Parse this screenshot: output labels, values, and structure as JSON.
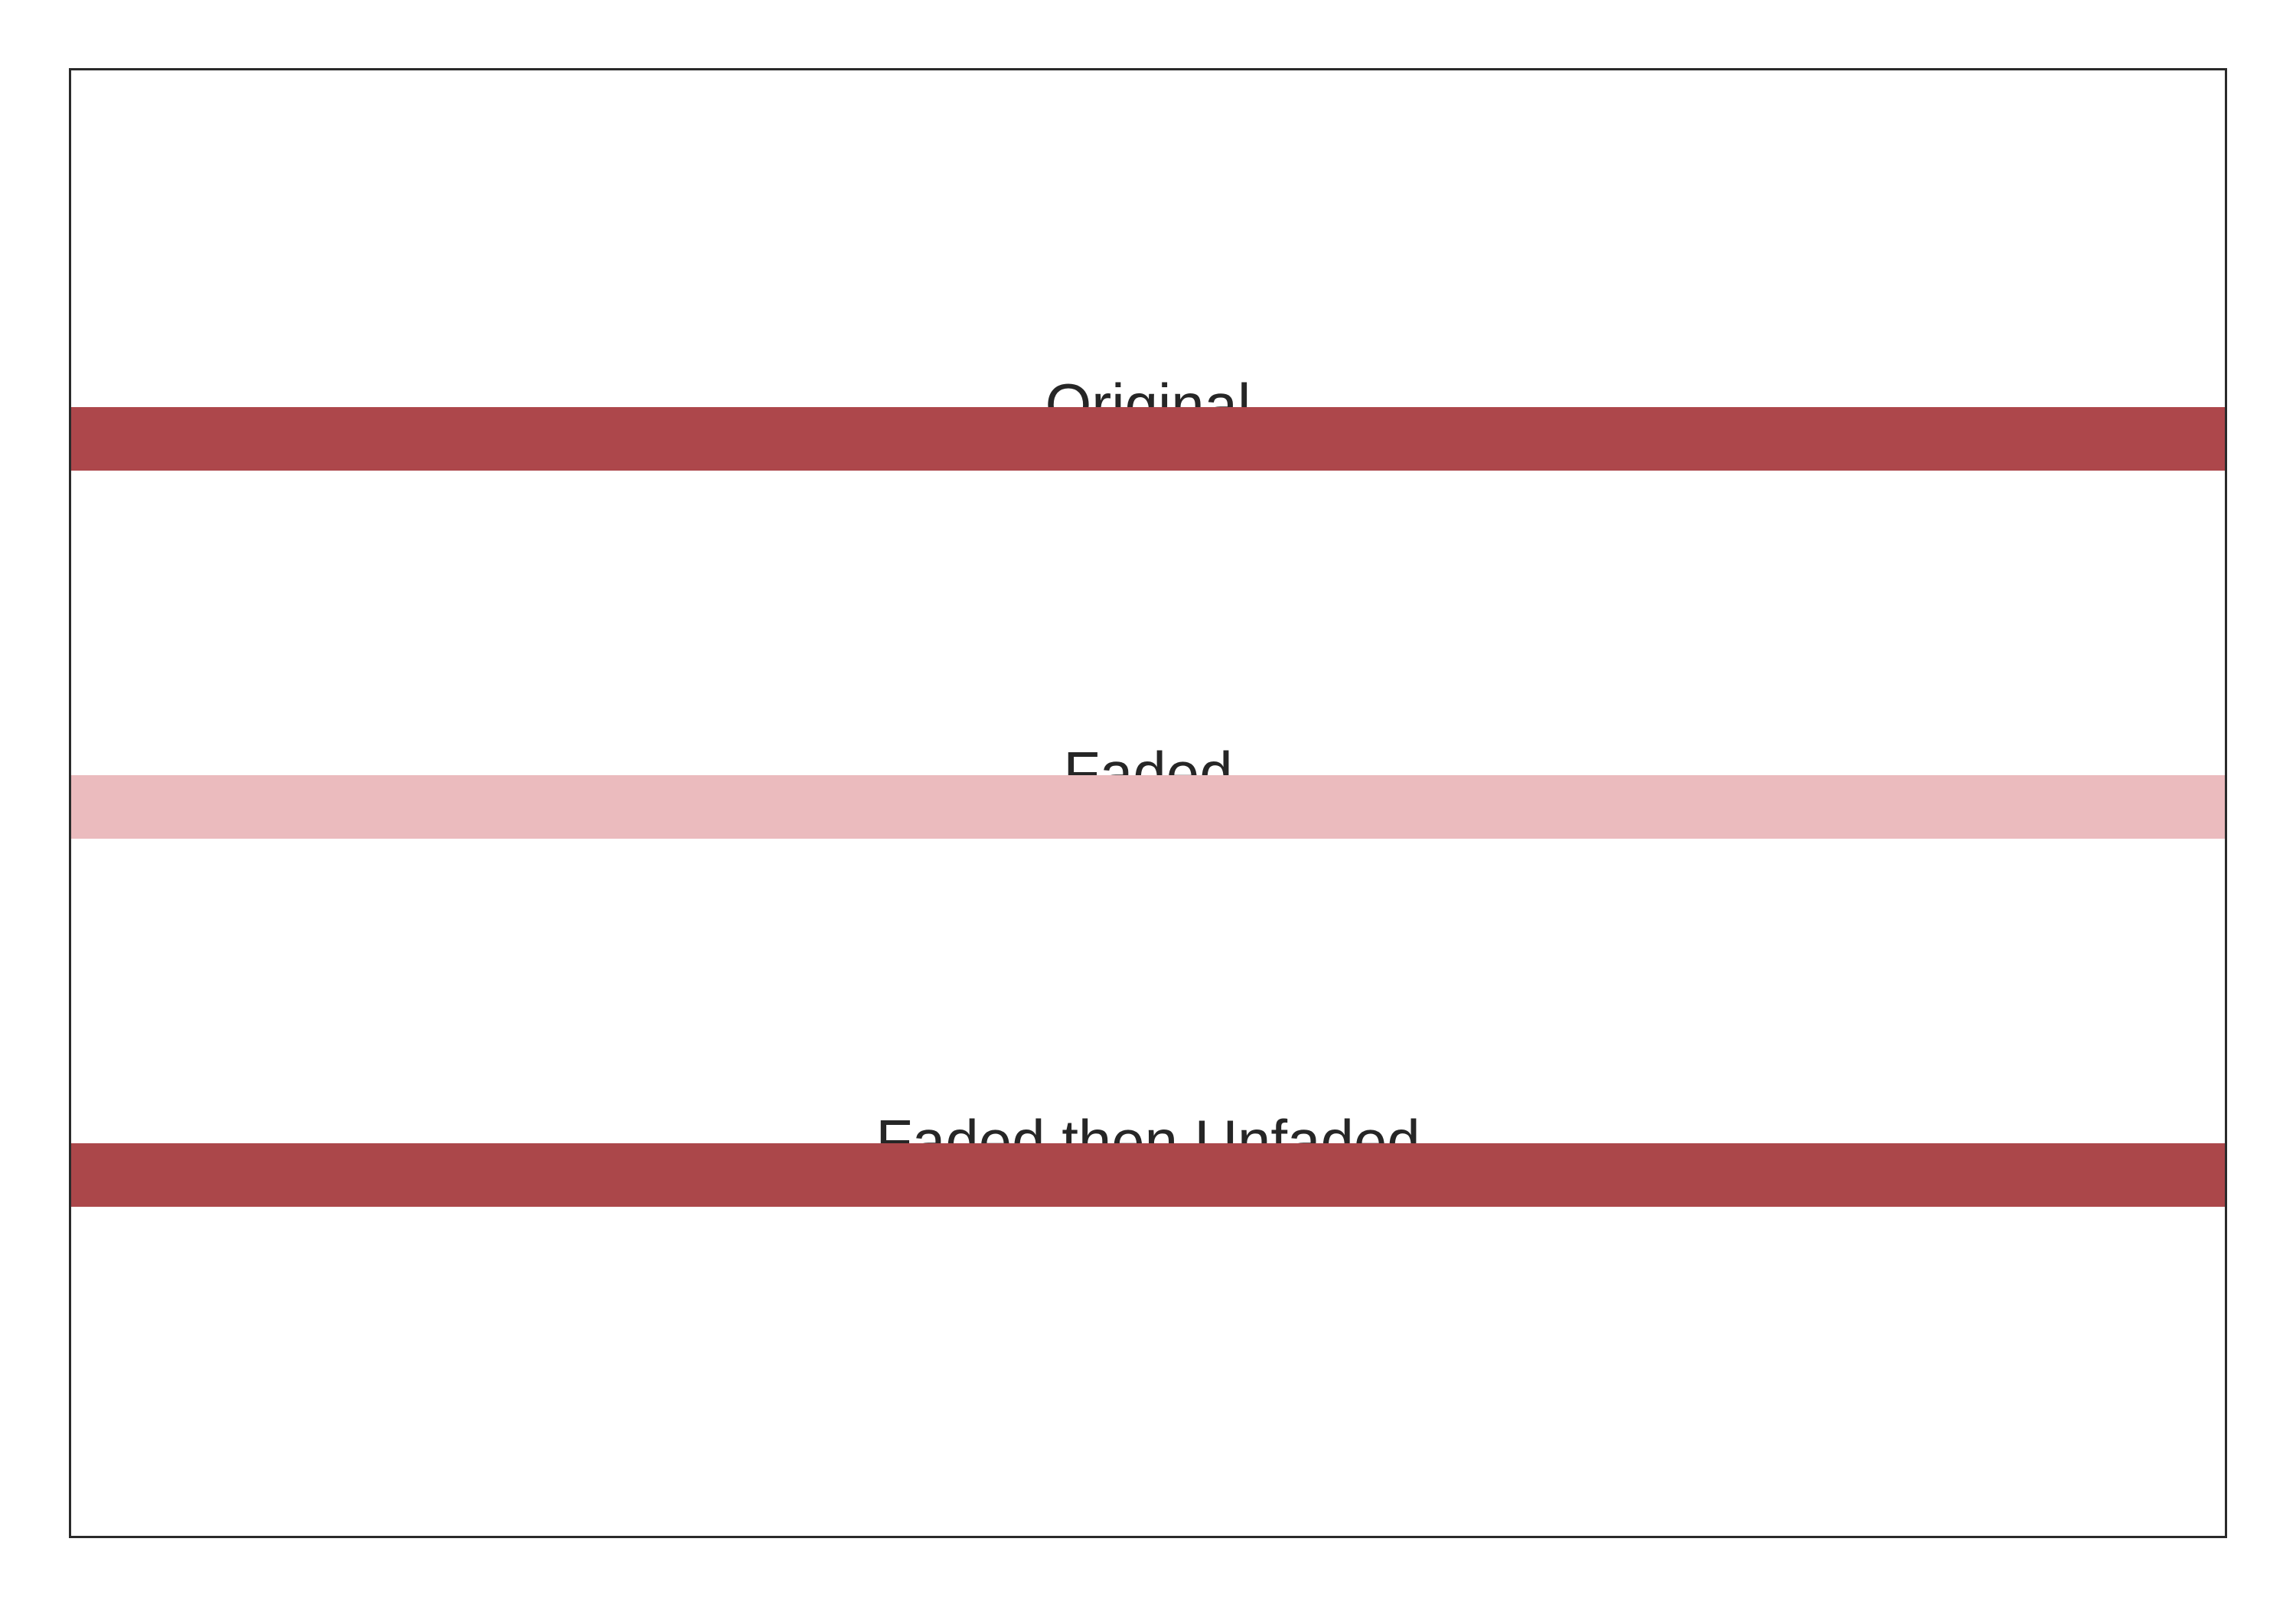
{
  "bands": [
    {
      "label": "Original",
      "color": "#AD474B"
    },
    {
      "label": "Faded",
      "color": "#EBBBBE"
    },
    {
      "label": "Faded then Unfaded",
      "color": "#AB474A"
    }
  ]
}
